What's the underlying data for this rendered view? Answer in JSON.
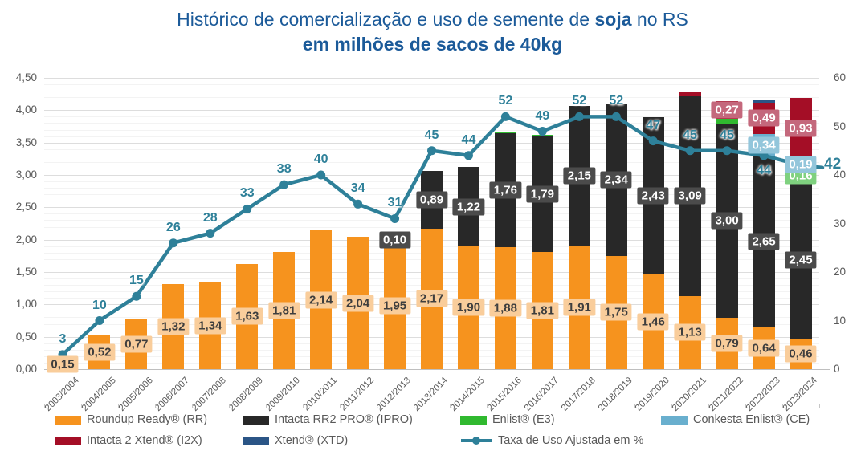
{
  "title": {
    "prefix": "Histórico de comercialização e uso de semente de ",
    "bold": "soja",
    "suffix": " no RS",
    "line2": "em milhões de sacos de 40kg",
    "color": "#1B5A99"
  },
  "chart_data": {
    "type": "combo-stacked-bar-line",
    "categories": [
      "2003/2004",
      "2004/2005",
      "2005/2006",
      "2006/2007",
      "2007/2008",
      "2008/2009",
      "2009/2010",
      "2010/2011",
      "2011/2012",
      "2012/2013",
      "2013/2014",
      "2014/2015",
      "2015/2016",
      "2016/2017",
      "2017/2018",
      "2018/2019",
      "2019/2020",
      "2020/2021",
      "2021/2022",
      "2022/2023",
      "2023/2024"
    ],
    "left_axis": {
      "min": 0,
      "max": 4.5,
      "major_step": 0.5,
      "minor_step": 0.1,
      "tick_labels": [
        "4,50",
        "4,00",
        "3,50",
        "3,00",
        "2,50",
        "2,00",
        "1,50",
        "1,00",
        "0,50",
        "0,00"
      ]
    },
    "right_axis": {
      "min": 0,
      "max": 60,
      "major_step": 10,
      "tick_labels": [
        "60",
        "50",
        "40",
        "30",
        "20",
        "10",
        "0"
      ]
    },
    "series": [
      {
        "name": "Roundup Ready® (RR)",
        "color": "#F6931E",
        "badge_bg": "#F9CD9B",
        "badge_fg": "#3E3E3E",
        "values": [
          0.15,
          0.52,
          0.77,
          1.32,
          1.34,
          1.63,
          1.81,
          2.14,
          2.04,
          1.95,
          2.17,
          1.9,
          1.88,
          1.81,
          1.91,
          1.75,
          1.46,
          1.13,
          0.79,
          0.64,
          0.46
        ],
        "labels": [
          "0,15",
          "0,52",
          "0,77",
          "1,32",
          "1,34",
          "1,63",
          "1,81",
          "2,14",
          "2,04",
          "1,95",
          "2,17",
          "1,90",
          "1,88",
          "1,81",
          "1,91",
          "1,75",
          "1,46",
          "1,13",
          "0,79",
          "0,64",
          "0,46"
        ]
      },
      {
        "name": "Intacta RR2 PRO® (IPRO)",
        "color": "#282828",
        "badge_bg": "#4B4B4B",
        "badge_fg": "#FFFFFF",
        "values": [
          0,
          0,
          0,
          0,
          0,
          0,
          0,
          0,
          0,
          0.1,
          0.89,
          1.22,
          1.76,
          1.79,
          2.15,
          2.34,
          2.43,
          3.09,
          3.0,
          2.65,
          2.45
        ],
        "labels": [
          null,
          null,
          null,
          null,
          null,
          null,
          null,
          null,
          null,
          "0,10",
          "0,89",
          "1,22",
          "1,76",
          "1,79",
          "2,15",
          "2,34",
          "2,43",
          "3,09",
          "3,00",
          "2,65",
          "2,45"
        ]
      },
      {
        "name": "Enlist® (E3)",
        "color": "#30B92F",
        "badge_bg": "#7FD17F",
        "badge_fg": "#FFFFFF",
        "values": [
          0,
          0,
          0,
          0,
          0,
          0,
          0,
          0,
          0,
          0,
          0,
          0,
          0.02,
          0.02,
          0,
          0,
          0,
          0,
          0.08,
          0,
          0.16
        ],
        "labels": [
          null,
          null,
          null,
          null,
          null,
          null,
          null,
          null,
          null,
          null,
          null,
          null,
          null,
          null,
          null,
          null,
          null,
          null,
          null,
          null,
          "0,16"
        ]
      },
      {
        "name": "Conkesta Enlist® (CE)",
        "color": "#69AFCE",
        "badge_bg": "#93C6DB",
        "badge_fg": "#FFFFFF",
        "values": [
          0,
          0,
          0,
          0,
          0,
          0,
          0,
          0,
          0,
          0,
          0,
          0,
          0,
          0,
          0,
          0,
          0,
          0,
          0,
          0.34,
          0.19
        ],
        "labels": [
          null,
          null,
          null,
          null,
          null,
          null,
          null,
          null,
          null,
          null,
          null,
          null,
          null,
          null,
          null,
          null,
          null,
          null,
          null,
          "0,34",
          "0,19"
        ]
      },
      {
        "name": "Intacta 2 Xtend® (I2X)",
        "color": "#A40E26",
        "badge_bg": "#C4687C",
        "badge_fg": "#FFFFFF",
        "values": [
          0,
          0,
          0,
          0,
          0,
          0,
          0,
          0,
          0,
          0,
          0,
          0,
          0,
          0,
          0,
          0,
          0,
          0.06,
          0.27,
          0.49,
          0.93
        ],
        "labels": [
          null,
          null,
          null,
          null,
          null,
          null,
          null,
          null,
          null,
          null,
          null,
          null,
          null,
          null,
          null,
          null,
          null,
          null,
          "0,27",
          "0,49",
          "0,93"
        ]
      },
      {
        "name": "Xtend® (XTD)",
        "color": "#2B5586",
        "badge_bg": "#2B5586",
        "badge_fg": "#FFFFFF",
        "values": [
          0,
          0,
          0,
          0,
          0,
          0,
          0,
          0,
          0,
          0,
          0,
          0,
          0,
          0,
          0,
          0,
          0,
          0,
          0,
          0.04,
          0
        ],
        "labels": [
          null,
          null,
          null,
          null,
          null,
          null,
          null,
          null,
          null,
          null,
          null,
          null,
          null,
          null,
          null,
          null,
          null,
          null,
          null,
          null,
          null
        ]
      }
    ],
    "line": {
      "name": "Taxa de Uso Ajustada em %",
      "color": "#2E8099",
      "values": [
        3,
        10,
        15,
        26,
        28,
        33,
        38,
        40,
        34,
        31,
        45,
        44,
        52,
        49,
        52,
        52,
        47,
        45,
        45,
        44,
        42
      ],
      "labels": [
        "3",
        "10",
        "15",
        "26",
        "28",
        "33",
        "38",
        "40",
        "34",
        "31",
        "45",
        "44",
        "52",
        "49",
        "52",
        "52",
        "47",
        "45",
        "45",
        "44",
        null
      ],
      "end_label": "42"
    },
    "legend_order": [
      "Roundup Ready® (RR)",
      "Intacta RR2 PRO® (IPRO)",
      "Enlist® (E3)",
      "Conkesta Enlist® (CE)",
      "Intacta 2 Xtend® (I2X)",
      "Xtend® (XTD)",
      "Taxa de Uso Ajustada em %"
    ]
  }
}
